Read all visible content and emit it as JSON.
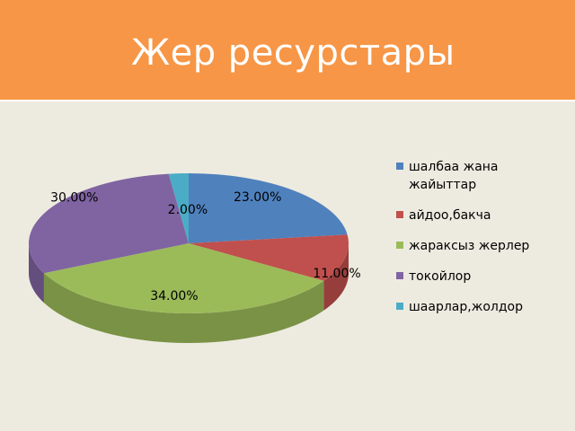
{
  "title": "Жер ресурстары",
  "chart_data": {
    "type": "pie",
    "title": "Жер ресурстары",
    "labels": [
      "шалбаа жана жайыттар",
      "айдоо,бакча",
      "жараксыз жерлер",
      "токойлор",
      "шаарлар,жолдор"
    ],
    "values": [
      23,
      11,
      34,
      30,
      2
    ],
    "value_labels": [
      "23.00%",
      "11.00%",
      "34.00%",
      "30.00%",
      "2.00%"
    ],
    "colors": [
      "#4f81bd",
      "#c0504d",
      "#9bbb59",
      "#8064a2",
      "#4bacc6"
    ],
    "legend_position": "right",
    "three_d": true
  }
}
